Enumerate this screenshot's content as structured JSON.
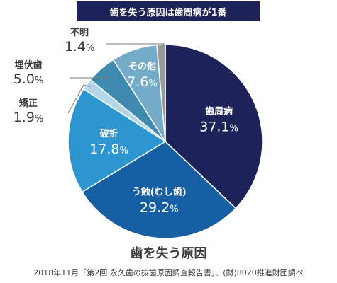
{
  "banner": {
    "title": "歯を失う原因は歯周病が1番"
  },
  "chart_data": {
    "type": "pie",
    "title": "歯を失う原因は歯周病が1番",
    "subtitle": "歯を失う原因",
    "source": "2018年11月「第2回 永久歯の抜歯原因調査報告書」、(財)8020推進財団調べ",
    "unit": "%",
    "slices": [
      {
        "label": "歯周病",
        "value": 37.1,
        "display": "37.1",
        "color": "#1d2259"
      },
      {
        "label": "う蝕(むし歯)",
        "value": 29.2,
        "display": "29.2",
        "color": "#175fa3"
      },
      {
        "label": "破折",
        "value": 17.8,
        "display": "17.8",
        "color": "#2d96d0"
      },
      {
        "label": "矯正",
        "value": 1.9,
        "display": "1.9",
        "color": "#b3d6e8"
      },
      {
        "label": "埋伏歯",
        "value": 5.0,
        "display": "5.0",
        "color": "#3f8bb0"
      },
      {
        "label": "その他",
        "value": 7.6,
        "display": "7.6",
        "color": "#73abc8"
      },
      {
        "label": "不明",
        "value": 1.4,
        "display": "1.4",
        "color": "#9a9a9a"
      }
    ]
  }
}
